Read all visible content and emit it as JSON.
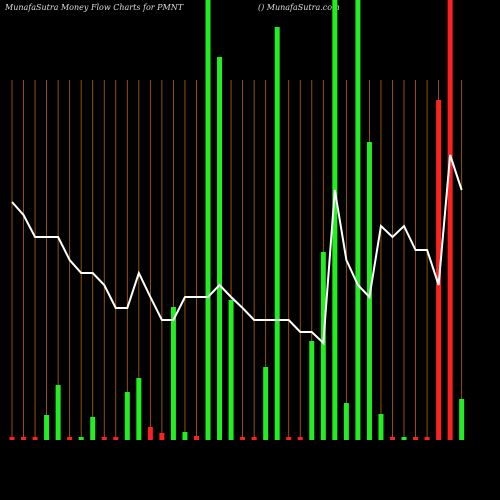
{
  "chart_data": {
    "type": "bar",
    "title": "MunafaSutra  Money Flow  Charts for PMNT",
    "subtitle": "() MunafaSutra.com",
    "ylim": [
      0,
      440
    ],
    "grid": true,
    "grid_color": "#b8650a",
    "series": [
      {
        "type": "bar",
        "values": [
          3,
          3,
          3,
          25,
          55,
          3,
          3,
          23,
          3,
          3,
          48,
          62,
          13,
          7,
          133,
          8,
          4,
          440,
          383,
          140,
          3,
          3,
          73,
          413,
          3,
          3,
          99,
          188,
          440,
          37,
          440,
          298,
          26,
          3,
          3,
          3,
          3,
          340,
          440,
          41
        ],
        "colors": [
          "#ff2020",
          "#ff2020",
          "#ff2020",
          "#22ee22",
          "#22ee22",
          "#ff2020",
          "#22ee22",
          "#22ee22",
          "#ff2020",
          "#ff2020",
          "#22ee22",
          "#22ee22",
          "#ff2020",
          "#ff2020",
          "#22ee22",
          "#22ee22",
          "#ff2020",
          "#22ee22",
          "#22ee22",
          "#22ee22",
          "#ff2020",
          "#ff2020",
          "#22ee22",
          "#22ee22",
          "#ff2020",
          "#ff2020",
          "#22ee22",
          "#22ee22",
          "#22ee22",
          "#22ee22",
          "#22ee22",
          "#22ee22",
          "#22ee22",
          "#ff2020",
          "#22ee22",
          "#ff2020",
          "#ff2020",
          "#ff2020",
          "#ff2020",
          "#22ee22"
        ]
      },
      {
        "type": "line",
        "color": "#ffffff",
        "values": [
          238,
          225,
          203,
          203,
          203,
          180,
          167,
          167,
          155,
          132,
          132,
          167,
          143,
          120,
          120,
          143,
          143,
          143,
          155,
          143,
          132,
          120,
          120,
          120,
          120,
          108,
          108,
          97,
          250,
          180,
          155,
          143,
          214,
          203,
          214,
          190,
          190,
          155,
          285,
          250
        ]
      }
    ]
  }
}
